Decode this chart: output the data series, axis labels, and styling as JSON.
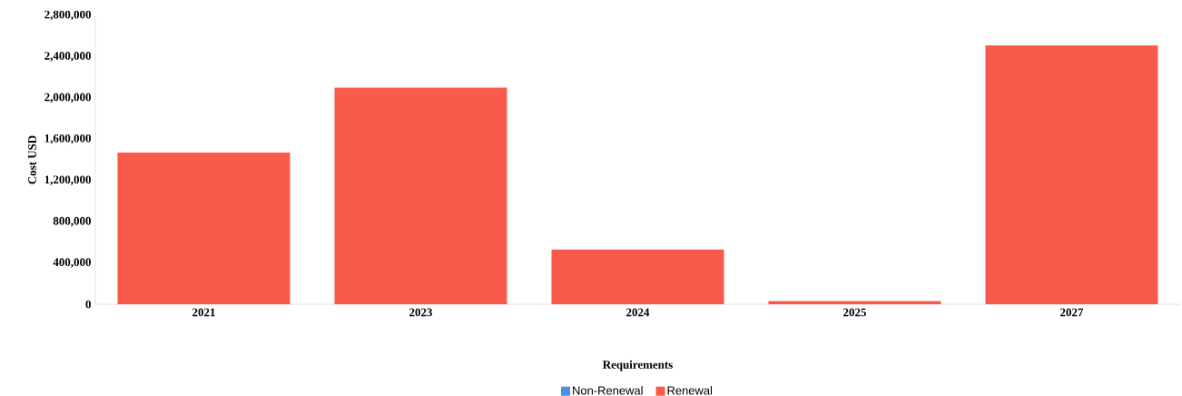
{
  "chart_data": {
    "type": "bar",
    "xlabel": "Requirements",
    "ylabel": "Cost USD",
    "categories": [
      "2021",
      "2023",
      "2024",
      "2025",
      "2027"
    ],
    "series": [
      {
        "name": "Non-Renewal",
        "color": "#4a90e2",
        "values": [
          null,
          null,
          null,
          null,
          null
        ]
      },
      {
        "name": "Renewal",
        "color": "#fa5a4b",
        "values": [
          1470000,
          2100000,
          530000,
          30000,
          2510000
        ]
      }
    ],
    "ylim": [
      0,
      2800000
    ],
    "yticks": [
      {
        "value": 0,
        "label": "0"
      },
      {
        "value": 400000,
        "label": "400,000"
      },
      {
        "value": 800000,
        "label": "800,000"
      },
      {
        "value": 1200000,
        "label": "1,200,000"
      },
      {
        "value": 1600000,
        "label": "1,600,000"
      },
      {
        "value": 2000000,
        "label": "2,000,000"
      },
      {
        "value": 2400000,
        "label": "2,400,000"
      },
      {
        "value": 2800000,
        "label": "2,800,000"
      }
    ],
    "grid": false,
    "legend": "bottom"
  }
}
